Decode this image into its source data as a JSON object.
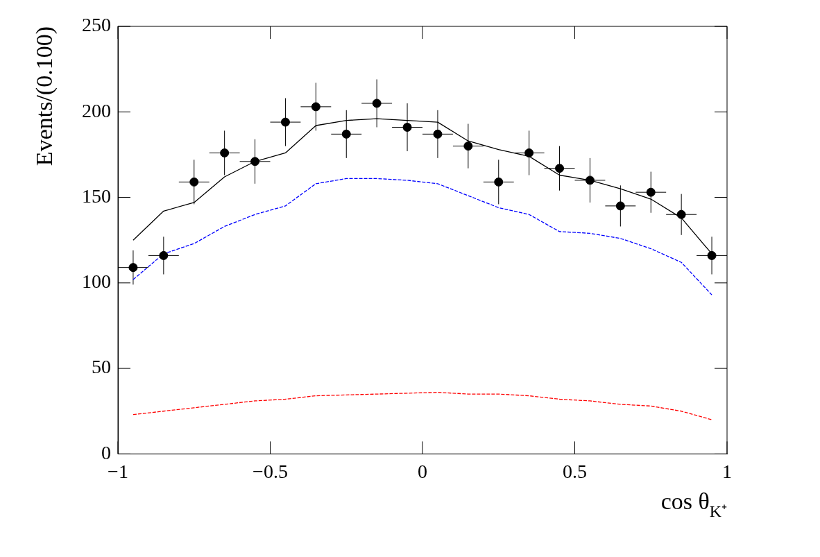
{
  "chart_data": {
    "type": "scatter",
    "xlabel": "cos θ$_{K⁺}$",
    "ylabel": "Events/(0.100)",
    "xlim": [
      -1,
      1
    ],
    "ylim": [
      0,
      250
    ],
    "xticks": [
      -1,
      -0.5,
      0,
      0.5,
      1
    ],
    "yticks": [
      0,
      50,
      100,
      150,
      200,
      250
    ],
    "grid": false,
    "legend": false,
    "x": [
      -0.95,
      -0.85,
      -0.75,
      -0.65,
      -0.55,
      -0.45,
      -0.35,
      -0.25,
      -0.15,
      -0.05,
      0.05,
      0.15,
      0.25,
      0.35,
      0.45,
      0.55,
      0.65,
      0.75,
      0.85,
      0.95
    ],
    "series": [
      {
        "color": "#000000",
        "marker": "circle",
        "values": [
          109,
          116,
          159,
          176,
          171,
          194,
          203,
          187,
          205,
          191,
          187,
          180,
          159,
          176,
          167,
          160,
          145,
          153,
          140,
          116
        ],
        "errors": [
          10,
          11,
          13,
          13,
          13,
          14,
          14,
          14,
          14,
          14,
          14,
          13,
          13,
          13,
          13,
          13,
          12,
          12,
          12,
          11
        ],
        "xerrors": [
          0.05,
          0.05,
          0.05,
          0.05,
          0.05,
          0.05,
          0.05,
          0.05,
          0.05,
          0.05,
          0.05,
          0.05,
          0.05,
          0.05,
          0.05,
          0.05,
          0.05,
          0.05,
          0.05,
          0.05
        ]
      },
      {
        "type": "line",
        "color": "#000000",
        "line_style": "solid",
        "marker": "none",
        "values": [
          125,
          142,
          147,
          162,
          171,
          176,
          192,
          195,
          196,
          195,
          194,
          183,
          178,
          174,
          163,
          160,
          155,
          149,
          138,
          117
        ]
      },
      {
        "type": "line",
        "color": "#0000ff",
        "line_style": "dashed",
        "marker": "none",
        "values": [
          102,
          117,
          123,
          133,
          140,
          145,
          158,
          161,
          161,
          160,
          158,
          151,
          144,
          140,
          130,
          129,
          126,
          120,
          112,
          93
        ]
      },
      {
        "type": "line",
        "color": "#ff0000",
        "line_style": "dashed",
        "marker": "none",
        "values": [
          23,
          25,
          27,
          29,
          31,
          32,
          34,
          34.5,
          35,
          35.5,
          36,
          35,
          35,
          34,
          32,
          31,
          29,
          28,
          25,
          20
        ]
      }
    ]
  }
}
